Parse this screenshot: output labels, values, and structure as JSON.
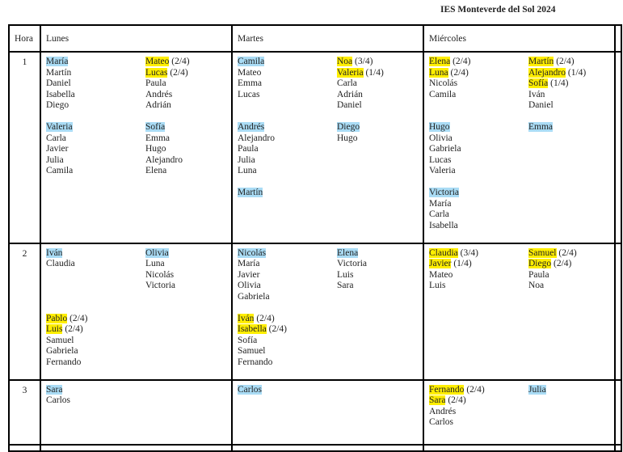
{
  "title": "IES Monteverde del Sol 2024",
  "colors": {
    "blue_highlight": "#aadcf5",
    "yellow_highlight": "#ffee00"
  },
  "headers": {
    "hora": "Hora",
    "days": [
      "Lunes",
      "Martes",
      "Miércoles",
      ""
    ]
  },
  "rows": [
    {
      "hora": "1",
      "cells": [
        [
          [
            [
              {
                "n": "María",
                "h": "blue"
              },
              {
                "n": "Martín"
              },
              {
                "n": "Daniel"
              },
              {
                "n": "Isabella"
              },
              {
                "n": "Diego"
              }
            ],
            [
              {
                "n": "Valeria",
                "h": "blue"
              },
              {
                "n": "Carla"
              },
              {
                "n": "Javier"
              },
              {
                "n": "Julia"
              },
              {
                "n": "Camila"
              }
            ]
          ],
          [
            [
              {
                "n": "Mateo",
                "h": "yellow",
                "f": "(2/4)"
              },
              {
                "n": "Lucas",
                "h": "yellow",
                "f": "(2/4)"
              },
              {
                "n": "Paula"
              },
              {
                "n": "Andrés"
              },
              {
                "n": "Adrián"
              }
            ],
            [
              {
                "n": "Sofía",
                "h": "blue"
              },
              {
                "n": "Emma"
              },
              {
                "n": "Hugo"
              },
              {
                "n": "Alejandro"
              },
              {
                "n": "Elena"
              }
            ]
          ]
        ],
        [
          [
            [
              {
                "n": "Camila",
                "h": "blue"
              },
              {
                "n": "Mateo"
              },
              {
                "n": "Emma"
              },
              {
                "n": "Lucas"
              },
              {
                "n": ""
              }
            ],
            [
              {
                "n": "Andrés",
                "h": "blue"
              },
              {
                "n": "Alejandro"
              },
              {
                "n": "Paula"
              },
              {
                "n": "Julia"
              },
              {
                "n": "Luna"
              }
            ],
            [
              {
                "n": "Martín",
                "h": "blue"
              }
            ]
          ],
          [
            [
              {
                "n": "Noa",
                "h": "yellow",
                "f": "(3/4)"
              },
              {
                "n": "Valeria",
                "h": "yellow",
                "f": "(1/4)"
              },
              {
                "n": "Carla"
              },
              {
                "n": "Adrián"
              },
              {
                "n": "Daniel"
              }
            ],
            [
              {
                "n": "Diego",
                "h": "blue"
              },
              {
                "n": "Hugo"
              }
            ]
          ]
        ],
        [
          [
            [
              {
                "n": "Elena",
                "h": "yellow",
                "f": "(2/4)"
              },
              {
                "n": "Luna",
                "h": "yellow",
                "f": "(2/4)"
              },
              {
                "n": "Nicolás"
              },
              {
                "n": "Camila"
              },
              {
                "n": ""
              }
            ],
            [
              {
                "n": "Hugo",
                "h": "blue"
              },
              {
                "n": "Olivia"
              },
              {
                "n": "Gabriela"
              },
              {
                "n": "Lucas"
              },
              {
                "n": "Valeria"
              }
            ],
            [
              {
                "n": "Victoria",
                "h": "blue"
              },
              {
                "n": "María"
              },
              {
                "n": "Carla"
              },
              {
                "n": "Isabella"
              }
            ]
          ],
          [
            [
              {
                "n": "Martín",
                "h": "yellow",
                "f": "(2/4)"
              },
              {
                "n": "Alejandro",
                "h": "yellow",
                "f": "(1/4)"
              },
              {
                "n": "Sofía",
                "h": "yellow",
                "f": "(1/4)"
              },
              {
                "n": "Iván"
              },
              {
                "n": "Daniel"
              }
            ],
            [
              {
                "n": "Emma",
                "h": "blue"
              }
            ]
          ]
        ]
      ]
    },
    {
      "hora": "2",
      "cells": [
        [
          [
            [
              {
                "n": "Iván",
                "h": "blue"
              },
              {
                "n": "Claudia"
              },
              {
                "n": ""
              },
              {
                "n": ""
              },
              {
                "n": ""
              }
            ],
            [
              {
                "n": "Pablo",
                "h": "yellow",
                "f": "(2/4)"
              },
              {
                "n": "Luis",
                "h": "yellow",
                "f": "(2/4)"
              },
              {
                "n": "Samuel"
              },
              {
                "n": "Gabriela"
              },
              {
                "n": "Fernando"
              }
            ]
          ],
          [
            [
              {
                "n": "Olivia",
                "h": "blue"
              },
              {
                "n": "Luna"
              },
              {
                "n": "Nicolás"
              },
              {
                "n": "Victoria"
              }
            ]
          ]
        ],
        [
          [
            [
              {
                "n": "Nicolás",
                "h": "blue"
              },
              {
                "n": "María"
              },
              {
                "n": "Javier"
              },
              {
                "n": "Olivia"
              },
              {
                "n": "Gabriela"
              }
            ],
            [
              {
                "n": "Iván",
                "h": "yellow",
                "f": "(2/4)"
              },
              {
                "n": "Isabella",
                "h": "yellow",
                "f": "(2/4)"
              },
              {
                "n": "Sofía"
              },
              {
                "n": "Samuel"
              },
              {
                "n": "Fernando"
              }
            ]
          ],
          [
            [
              {
                "n": "Elena",
                "h": "blue"
              },
              {
                "n": "Victoria"
              },
              {
                "n": "Luis"
              },
              {
                "n": "Sara"
              }
            ]
          ]
        ],
        [
          [
            [
              {
                "n": "Claudia",
                "h": "yellow",
                "f": "(3/4)"
              },
              {
                "n": "Javier",
                "h": "yellow",
                "f": "(1/4)"
              },
              {
                "n": "Mateo"
              },
              {
                "n": "Luis"
              }
            ]
          ],
          [
            [
              {
                "n": "Samuel",
                "h": "yellow",
                "f": "(2/4)"
              },
              {
                "n": "Diego",
                "h": "yellow",
                "f": "(2/4)"
              },
              {
                "n": "Paula"
              },
              {
                "n": "Noa"
              }
            ]
          ]
        ]
      ]
    },
    {
      "hora": "3",
      "cells": [
        [
          [
            [
              {
                "n": "Sara",
                "h": "blue"
              },
              {
                "n": "Carlos"
              }
            ]
          ],
          []
        ],
        [
          [
            [
              {
                "n": "Carlos",
                "h": "blue"
              }
            ]
          ],
          []
        ],
        [
          [
            [
              {
                "n": "Fernando",
                "h": "yellow",
                "f": "(2/4)"
              },
              {
                "n": "Sara",
                "h": "yellow",
                "f": "(2/4)"
              },
              {
                "n": "Andrés"
              },
              {
                "n": "Carlos"
              }
            ]
          ],
          [
            [
              {
                "n": "Julia",
                "h": "blue"
              }
            ]
          ]
        ]
      ]
    },
    {
      "hora": "",
      "cells": [
        [
          [],
          []
        ],
        [
          [],
          []
        ],
        [
          [],
          []
        ]
      ]
    }
  ]
}
